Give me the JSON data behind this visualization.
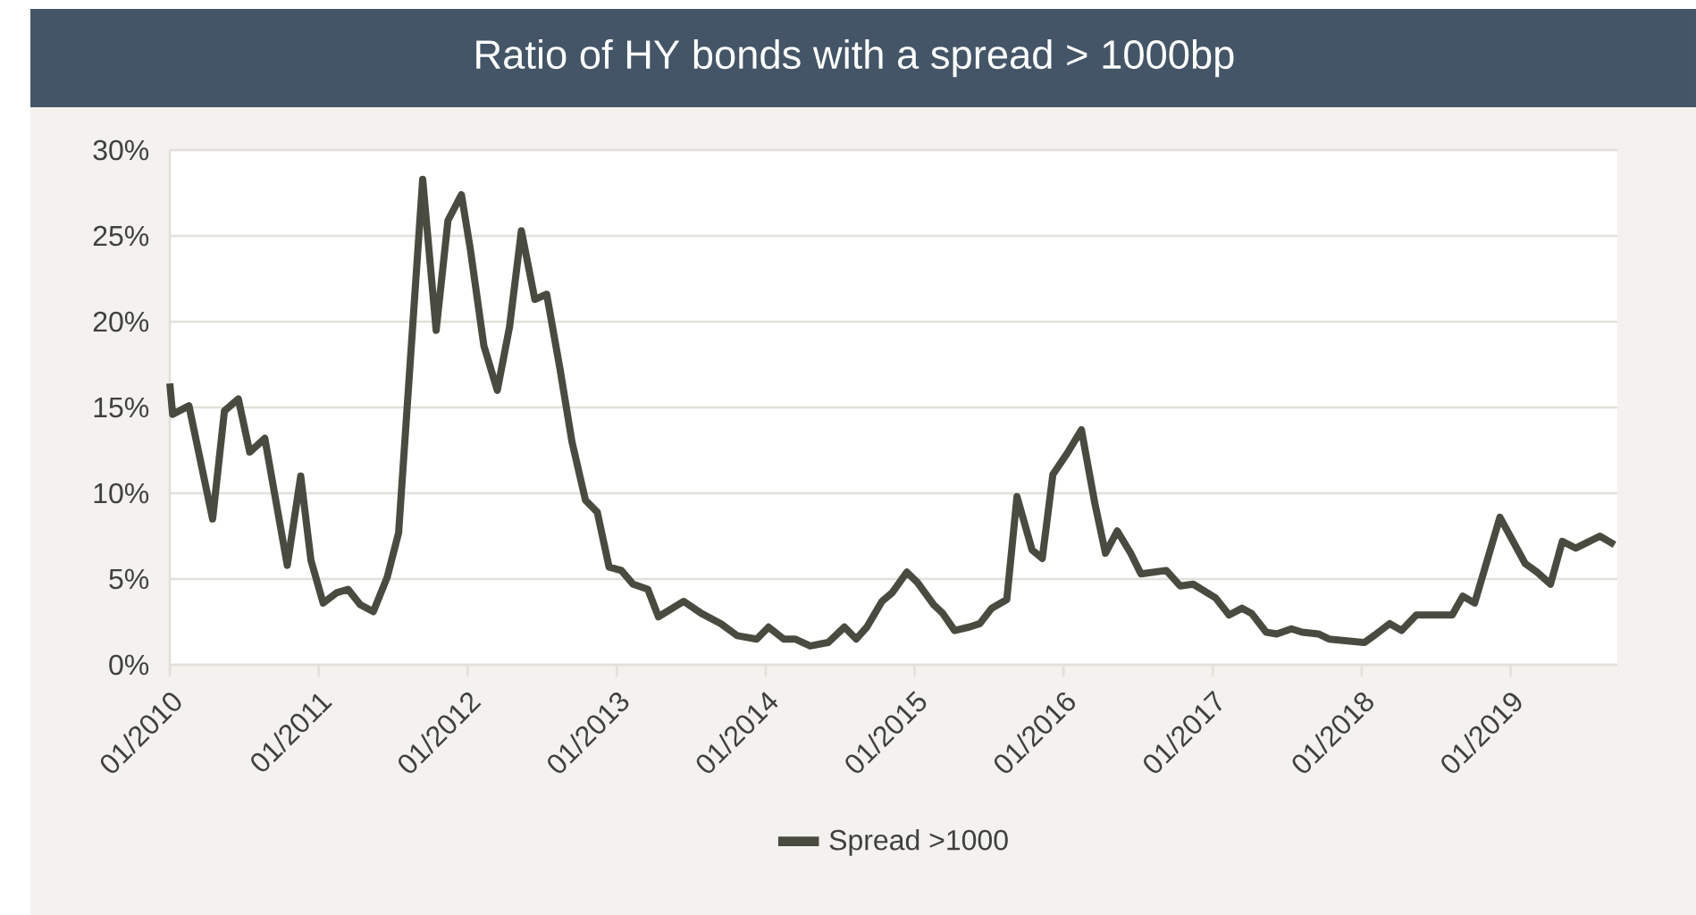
{
  "chart_data": {
    "type": "line",
    "title": "Ratio of HY bonds with a spread > 1000bp",
    "xlim": [
      "2010-01-01",
      "2019-09-20"
    ],
    "xticks": [
      {
        "value": "2010-01-01",
        "label": "01/2010"
      },
      {
        "value": "2011-01-01",
        "label": "01/2011"
      },
      {
        "value": "2012-01-01",
        "label": "01/2012"
      },
      {
        "value": "2013-01-01",
        "label": "01/2013"
      },
      {
        "value": "2014-01-01",
        "label": "01/2014"
      },
      {
        "value": "2015-01-01",
        "label": "01/2015"
      },
      {
        "value": "2016-01-01",
        "label": "01/2016"
      },
      {
        "value": "2017-01-01",
        "label": "01/2017"
      },
      {
        "value": "2018-01-01",
        "label": "01/2018"
      },
      {
        "value": "2019-01-01",
        "label": "01/2019"
      }
    ],
    "ylim": [
      0,
      30
    ],
    "yticks": [
      {
        "value": 0,
        "label": "0%"
      },
      {
        "value": 5,
        "label": "5%"
      },
      {
        "value": 10,
        "label": "10%"
      },
      {
        "value": 15,
        "label": "15%"
      },
      {
        "value": 20,
        "label": "20%"
      },
      {
        "value": 25,
        "label": "25%"
      },
      {
        "value": 30,
        "label": "30%"
      }
    ],
    "grid": "y",
    "legend": "bottom",
    "series": [
      {
        "name": "Spread >1000",
        "color": "#4a4b40",
        "x": [
          "2010-01-01",
          "2010-01-08",
          "2010-02-17",
          "2010-04-16",
          "2010-05-15",
          "2010-06-18",
          "2010-07-16",
          "2010-08-22",
          "2010-10-16",
          "2010-11-18",
          "2010-12-13",
          "2011-01-12",
          "2011-02-14",
          "2011-03-14",
          "2011-04-13",
          "2011-05-15",
          "2011-06-18",
          "2011-07-16",
          "2011-09-13",
          "2011-10-16",
          "2011-11-14",
          "2011-12-17",
          "2012-01-08",
          "2012-02-10",
          "2012-03-14",
          "2012-04-13",
          "2012-05-12",
          "2012-06-14",
          "2012-07-13",
          "2012-08-15",
          "2012-09-13",
          "2012-10-16",
          "2012-11-14",
          "2012-12-13",
          "2013-01-12",
          "2013-02-10",
          "2013-03-18",
          "2013-04-13",
          "2013-06-14",
          "2013-07-27",
          "2013-09-13",
          "2013-10-23",
          "2013-12-10",
          "2014-01-08",
          "2014-02-14",
          "2014-03-14",
          "2014-04-20",
          "2014-06-03",
          "2014-07-13",
          "2014-08-11",
          "2014-09-06",
          "2014-10-13",
          "2014-11-07",
          "2014-12-13",
          "2015-01-08",
          "2015-02-17",
          "2015-03-11",
          "2015-04-09",
          "2015-05-15",
          "2015-06-10",
          "2015-07-09",
          "2015-08-15",
          "2015-09-09",
          "2015-10-16",
          "2015-11-10",
          "2015-12-06",
          "2016-01-12",
          "2016-02-14",
          "2016-03-18",
          "2016-04-13",
          "2016-05-12",
          "2016-06-14",
          "2016-07-09",
          "2016-09-09",
          "2016-10-13",
          "2016-11-14",
          "2017-01-08",
          "2017-02-10",
          "2017-03-14",
          "2017-04-06",
          "2017-05-12",
          "2017-06-07",
          "2017-07-13",
          "2017-08-08",
          "2017-09-17",
          "2017-10-13",
          "2018-01-08",
          "2018-02-06",
          "2018-03-11",
          "2018-04-09",
          "2018-05-15",
          "2018-08-11",
          "2018-09-06",
          "2018-10-05",
          "2018-12-06",
          "2019-02-06",
          "2019-03-07",
          "2019-04-09",
          "2019-05-08",
          "2019-06-10",
          "2019-08-08",
          "2019-09-13"
        ],
        "values": [
          16.4,
          14.6,
          15.1,
          8.5,
          14.8,
          15.5,
          12.4,
          13.2,
          5.8,
          11.0,
          6.1,
          3.6,
          4.2,
          4.4,
          3.5,
          3.1,
          5.1,
          7.7,
          28.3,
          19.5,
          25.9,
          27.4,
          24.2,
          18.6,
          16.0,
          19.7,
          25.3,
          21.3,
          21.6,
          17.2,
          13.0,
          9.6,
          8.9,
          5.7,
          5.5,
          4.7,
          4.4,
          2.8,
          3.7,
          3.0,
          2.4,
          1.7,
          1.5,
          2.2,
          1.5,
          1.5,
          1.1,
          1.3,
          2.2,
          1.5,
          2.2,
          3.7,
          4.2,
          5.4,
          4.8,
          3.5,
          3.0,
          2.0,
          2.2,
          2.4,
          3.3,
          3.8,
          9.8,
          6.7,
          6.2,
          11.1,
          12.4,
          13.7,
          9.4,
          6.5,
          7.8,
          6.5,
          5.3,
          5.5,
          4.6,
          4.7,
          3.9,
          2.9,
          3.3,
          3.0,
          1.9,
          1.8,
          2.1,
          1.9,
          1.8,
          1.5,
          1.3,
          1.8,
          2.4,
          2.0,
          2.9,
          2.9,
          4.0,
          3.6,
          8.6,
          5.9,
          5.4,
          4.7,
          7.2,
          6.8,
          7.5,
          7.0
        ]
      }
    ]
  }
}
